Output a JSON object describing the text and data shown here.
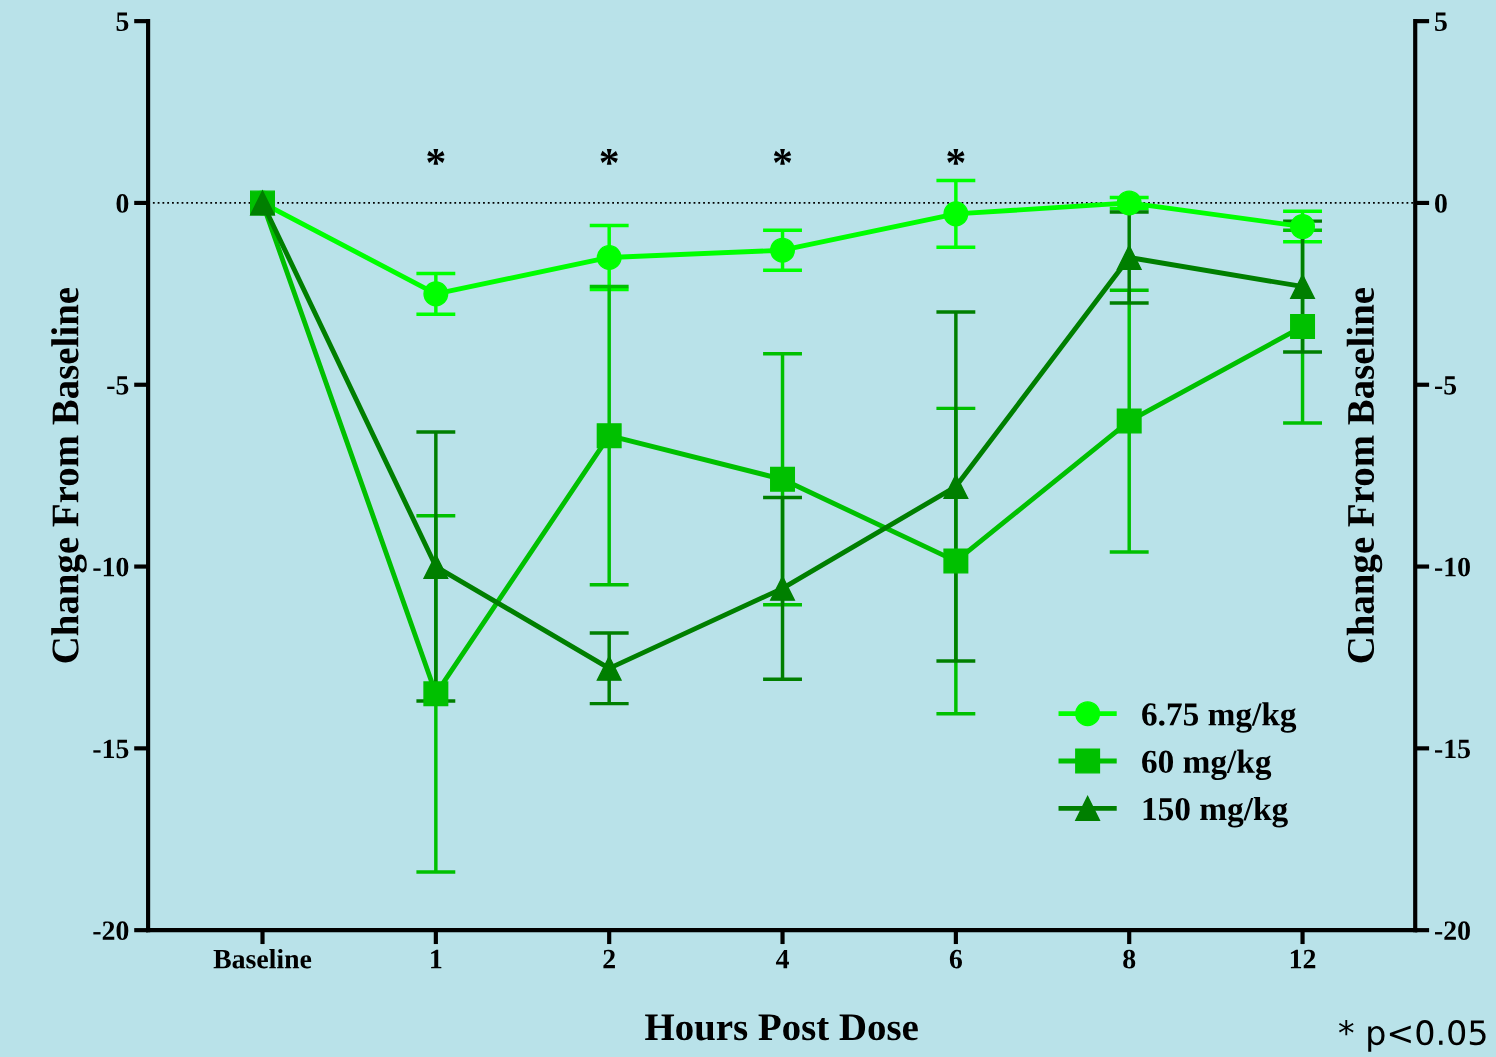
{
  "chart_data": {
    "type": "line",
    "xlabel": "Hours Post Dose",
    "ylabel": "Change From Baseline",
    "y2label": "Change From Baseline",
    "categories": [
      "Baseline",
      "1",
      "2",
      "4",
      "6",
      "8",
      "12"
    ],
    "series": [
      {
        "name": "6.75 mg/kg",
        "color": "#00ff00",
        "marker": "circle",
        "values": [
          0,
          -2.5,
          -1.5,
          -1.3,
          -0.3,
          0,
          -0.65
        ],
        "errors": [
          null,
          0.56,
          0.88,
          0.55,
          0.92,
          0.15,
          0.42
        ]
      },
      {
        "name": "60 mg/kg",
        "color": "#00c000",
        "marker": "square",
        "values": [
          0,
          -13.5,
          -6.4,
          -7.6,
          -9.85,
          -6.0,
          -3.4
        ],
        "errors": [
          null,
          4.9,
          4.1,
          3.45,
          4.2,
          3.6,
          2.65
        ]
      },
      {
        "name": "150 mg/kg",
        "color": "#007f00",
        "marker": "triangle",
        "values": [
          0,
          -10.0,
          -12.8,
          -10.6,
          -7.8,
          -1.5,
          -2.3
        ],
        "errors": [
          null,
          3.7,
          0.97,
          2.5,
          4.8,
          1.25,
          1.8
        ]
      }
    ],
    "ylim": [
      -20,
      5
    ],
    "yticks": [
      -20,
      -15,
      -10,
      -5,
      0,
      5
    ],
    "y2lim": [
      -20,
      5
    ],
    "y2ticks": [
      -20,
      -15,
      -10,
      -5,
      0,
      5
    ],
    "ref_lines": [
      {
        "axis": "y",
        "value": 0,
        "color": "#000000",
        "line_style": "dotted"
      }
    ],
    "annotations": [
      "*",
      "*",
      "*",
      "*",
      "* p<0.05"
    ],
    "legend": "bottom right",
    "grid": false,
    "line_style": "solid"
  }
}
